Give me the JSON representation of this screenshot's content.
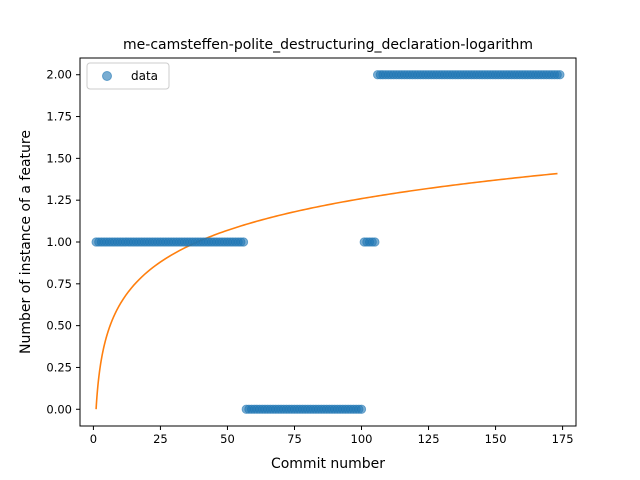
{
  "chart_data": {
    "type": "scatter",
    "title": "me-camsteffen-polite_destructuring_declaration-logarithm",
    "xlabel": "Commit number",
    "ylabel": "Number of instance of a feature",
    "xlim": [
      -5,
      180
    ],
    "ylim": [
      -0.1,
      2.1
    ],
    "xticks": [
      0,
      25,
      50,
      75,
      100,
      125,
      150,
      175
    ],
    "yticks": [
      0.0,
      0.25,
      0.5,
      0.75,
      1.0,
      1.25,
      1.5,
      1.75,
      2.0
    ],
    "xtick_labels": [
      "0",
      "25",
      "50",
      "75",
      "100",
      "125",
      "150",
      "175"
    ],
    "ytick_labels": [
      "0.00",
      "0.25",
      "0.50",
      "0.75",
      "1.00",
      "1.25",
      "1.50",
      "1.75",
      "2.00"
    ],
    "legend": {
      "placement": "upper-left",
      "entries": [
        "data"
      ]
    },
    "colors": {
      "data": "#1f77b4",
      "fit": "#ff7f0e"
    },
    "series": [
      {
        "name": "data",
        "kind": "scatter",
        "segments": [
          {
            "x_start": 1,
            "x_end": 56,
            "y": 1
          },
          {
            "x_start": 57,
            "x_end": 100,
            "y": 0
          },
          {
            "x_start": 101,
            "x_end": 105,
            "y": 1
          },
          {
            "x_start": 106,
            "x_end": 174,
            "y": 2
          }
        ]
      },
      {
        "kind": "line",
        "model": "logarithmic",
        "x_range": [
          1,
          174
        ],
        "points": [
          [
            1,
            0.0
          ],
          [
            2,
            0.19
          ],
          [
            5,
            0.44
          ],
          [
            10,
            0.63
          ],
          [
            25,
            0.88
          ],
          [
            40,
            1.01
          ],
          [
            50,
            1.07
          ],
          [
            75,
            1.18
          ],
          [
            100,
            1.26
          ],
          [
            125,
            1.32
          ],
          [
            150,
            1.37
          ],
          [
            174,
            1.41
          ]
        ]
      }
    ]
  }
}
